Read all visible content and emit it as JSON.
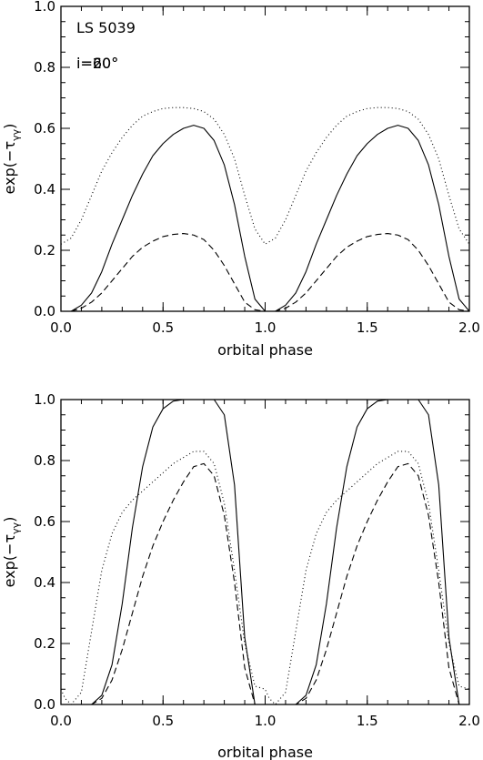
{
  "chart_data": [
    {
      "type": "line",
      "title": "",
      "annotations": [
        "LS 5039",
        "i=20°"
      ],
      "xlabel": "orbital phase",
      "ylabel": "exp(−τ",
      "ylabel_sub": "γγ",
      "ylabel_close": ")",
      "xlim": [
        0.0,
        2.0
      ],
      "ylim": [
        0.0,
        1.0
      ],
      "xticks": [
        0.0,
        0.5,
        1.0,
        1.5,
        2.0
      ],
      "xtick_labels": [
        "0.0",
        "0.5",
        "1.0",
        "1.5",
        "2.0"
      ],
      "yticks": [
        0.0,
        0.2,
        0.4,
        0.6,
        0.8,
        1.0
      ],
      "ytick_labels": [
        "0.0",
        "0.2",
        "0.4",
        "0.6",
        "0.8",
        "1.0"
      ],
      "grid": false,
      "series": [
        {
          "style": "solid",
          "x": [
            0.0,
            0.05,
            0.1,
            0.15,
            0.2,
            0.25,
            0.3,
            0.35,
            0.4,
            0.45,
            0.5,
            0.55,
            0.6,
            0.65,
            0.7,
            0.75,
            0.8,
            0.85,
            0.9,
            0.95,
            1.0,
            1.05,
            1.1,
            1.15,
            1.2,
            1.25,
            1.3,
            1.35,
            1.4,
            1.45,
            1.5,
            1.55,
            1.6,
            1.65,
            1.7,
            1.75,
            1.8,
            1.85,
            1.9,
            1.95,
            2.0
          ],
          "y": [
            0.0,
            0.0,
            0.02,
            0.06,
            0.13,
            0.22,
            0.3,
            0.38,
            0.45,
            0.51,
            0.55,
            0.58,
            0.6,
            0.61,
            0.6,
            0.56,
            0.48,
            0.35,
            0.18,
            0.04,
            0.0,
            0.0,
            0.02,
            0.06,
            0.13,
            0.22,
            0.3,
            0.38,
            0.45,
            0.51,
            0.55,
            0.58,
            0.6,
            0.61,
            0.6,
            0.56,
            0.48,
            0.35,
            0.18,
            0.04,
            0.0
          ]
        },
        {
          "style": "dashed",
          "x": [
            0.0,
            0.05,
            0.1,
            0.15,
            0.2,
            0.25,
            0.3,
            0.35,
            0.4,
            0.45,
            0.5,
            0.55,
            0.6,
            0.65,
            0.7,
            0.75,
            0.8,
            0.85,
            0.9,
            0.95,
            1.0,
            1.05,
            1.1,
            1.15,
            1.2,
            1.25,
            1.3,
            1.35,
            1.4,
            1.45,
            1.5,
            1.55,
            1.6,
            1.65,
            1.7,
            1.75,
            1.8,
            1.85,
            1.9,
            1.95,
            2.0
          ],
          "y": [
            0.0,
            0.0,
            0.01,
            0.03,
            0.06,
            0.1,
            0.14,
            0.18,
            0.21,
            0.23,
            0.245,
            0.252,
            0.255,
            0.25,
            0.235,
            0.2,
            0.15,
            0.09,
            0.03,
            0.005,
            0.0,
            0.0,
            0.01,
            0.03,
            0.06,
            0.1,
            0.14,
            0.18,
            0.21,
            0.23,
            0.245,
            0.252,
            0.255,
            0.25,
            0.235,
            0.2,
            0.15,
            0.09,
            0.03,
            0.005,
            0.0
          ]
        },
        {
          "style": "dotted",
          "x": [
            0.0,
            0.05,
            0.1,
            0.15,
            0.2,
            0.25,
            0.3,
            0.35,
            0.4,
            0.45,
            0.5,
            0.55,
            0.6,
            0.65,
            0.7,
            0.75,
            0.8,
            0.85,
            0.9,
            0.95,
            1.0,
            1.05,
            1.1,
            1.15,
            1.2,
            1.25,
            1.3,
            1.35,
            1.4,
            1.45,
            1.5,
            1.55,
            1.6,
            1.65,
            1.7,
            1.75,
            1.8,
            1.85,
            1.9,
            1.95,
            2.0
          ],
          "y": [
            0.22,
            0.24,
            0.3,
            0.38,
            0.46,
            0.52,
            0.57,
            0.61,
            0.64,
            0.655,
            0.665,
            0.668,
            0.668,
            0.665,
            0.655,
            0.63,
            0.58,
            0.5,
            0.38,
            0.27,
            0.22,
            0.24,
            0.3,
            0.38,
            0.46,
            0.52,
            0.57,
            0.61,
            0.64,
            0.655,
            0.665,
            0.668,
            0.668,
            0.665,
            0.655,
            0.63,
            0.58,
            0.5,
            0.38,
            0.27,
            0.22
          ]
        }
      ]
    },
    {
      "type": "line",
      "title": "",
      "annotations": [
        "i=60°"
      ],
      "xlabel": "orbital phase",
      "ylabel": "exp(−τ",
      "ylabel_sub": "γγ",
      "ylabel_close": ")",
      "xlim": [
        0.0,
        2.0
      ],
      "ylim": [
        0.0,
        1.0
      ],
      "xticks": [
        0.0,
        0.5,
        1.0,
        1.5,
        2.0
      ],
      "xtick_labels": [
        "0.0",
        "0.5",
        "1.0",
        "1.5",
        "2.0"
      ],
      "yticks": [
        0.0,
        0.2,
        0.4,
        0.6,
        0.8,
        1.0
      ],
      "ytick_labels": [
        "0.0",
        "0.2",
        "0.4",
        "0.6",
        "0.8",
        "1.0"
      ],
      "grid": false,
      "series": [
        {
          "style": "solid",
          "x": [
            0.0,
            0.05,
            0.1,
            0.15,
            0.2,
            0.25,
            0.3,
            0.35,
            0.4,
            0.45,
            0.5,
            0.55,
            0.6,
            0.65,
            0.7,
            0.75,
            0.8,
            0.85,
            0.9,
            0.95,
            1.0,
            1.05,
            1.1,
            1.15,
            1.2,
            1.25,
            1.3,
            1.35,
            1.4,
            1.45,
            1.5,
            1.55,
            1.6,
            1.65,
            1.7,
            1.75,
            1.8,
            1.85,
            1.9,
            1.95,
            2.0
          ],
          "y": [
            0.0,
            0.0,
            0.0,
            0.0,
            0.03,
            0.13,
            0.33,
            0.58,
            0.78,
            0.91,
            0.97,
            0.995,
            1.0,
            1.0,
            1.0,
            1.0,
            0.95,
            0.72,
            0.22,
            0.0,
            0.0,
            0.0,
            0.0,
            0.0,
            0.03,
            0.13,
            0.33,
            0.58,
            0.78,
            0.91,
            0.97,
            0.995,
            1.0,
            1.0,
            1.0,
            1.0,
            0.95,
            0.72,
            0.22,
            0.0,
            0.0
          ]
        },
        {
          "style": "dashed",
          "x": [
            0.0,
            0.05,
            0.1,
            0.15,
            0.2,
            0.25,
            0.3,
            0.35,
            0.4,
            0.45,
            0.5,
            0.55,
            0.6,
            0.65,
            0.7,
            0.75,
            0.8,
            0.85,
            0.9,
            0.95,
            1.0,
            1.05,
            1.1,
            1.15,
            1.2,
            1.25,
            1.3,
            1.35,
            1.4,
            1.45,
            1.5,
            1.55,
            1.6,
            1.65,
            1.7,
            1.75,
            1.8,
            1.85,
            1.9,
            1.95,
            2.0
          ],
          "y": [
            0.0,
            0.0,
            0.0,
            0.0,
            0.02,
            0.08,
            0.18,
            0.3,
            0.42,
            0.52,
            0.6,
            0.67,
            0.73,
            0.78,
            0.79,
            0.75,
            0.62,
            0.4,
            0.12,
            0.0,
            0.0,
            0.0,
            0.0,
            0.0,
            0.02,
            0.08,
            0.18,
            0.3,
            0.42,
            0.52,
            0.6,
            0.67,
            0.73,
            0.78,
            0.79,
            0.75,
            0.62,
            0.4,
            0.12,
            0.0,
            0.0
          ]
        },
        {
          "style": "dotted",
          "x": [
            0.0,
            0.02,
            0.05,
            0.1,
            0.15,
            0.2,
            0.25,
            0.3,
            0.35,
            0.4,
            0.45,
            0.5,
            0.55,
            0.6,
            0.65,
            0.7,
            0.75,
            0.8,
            0.85,
            0.9,
            0.95,
            1.0,
            1.02,
            1.05,
            1.1,
            1.15,
            1.2,
            1.25,
            1.3,
            1.35,
            1.4,
            1.45,
            1.5,
            1.55,
            1.6,
            1.65,
            1.7,
            1.75,
            1.8,
            1.85,
            1.9,
            1.95,
            2.0
          ],
          "y": [
            0.05,
            0.02,
            0.0,
            0.04,
            0.24,
            0.44,
            0.56,
            0.63,
            0.67,
            0.7,
            0.73,
            0.76,
            0.79,
            0.81,
            0.83,
            0.83,
            0.79,
            0.66,
            0.44,
            0.2,
            0.06,
            0.05,
            0.02,
            0.0,
            0.04,
            0.24,
            0.44,
            0.56,
            0.63,
            0.67,
            0.7,
            0.73,
            0.76,
            0.79,
            0.81,
            0.83,
            0.83,
            0.79,
            0.66,
            0.44,
            0.2,
            0.06,
            0.05
          ]
        }
      ]
    }
  ]
}
